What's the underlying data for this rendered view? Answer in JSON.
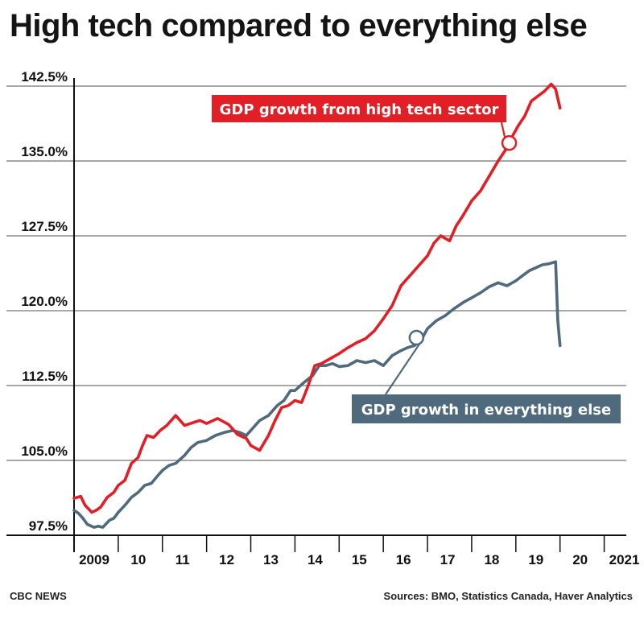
{
  "header": {
    "title": "High tech compared to everything else"
  },
  "footer": {
    "source_left": "CBC NEWS",
    "source_right": "Sources: BMO, Statistics Canada, Haver Analytics"
  },
  "chart_data": {
    "type": "line",
    "title": "High tech compared to everything else",
    "ylim": [
      97.5,
      142.5
    ],
    "xlim": [
      2009,
      2021.5
    ],
    "y_ticks": [
      97.5,
      105.0,
      112.5,
      120.0,
      127.5,
      135.0,
      142.5
    ],
    "y_tick_labels": [
      "97.5%",
      "105.0%",
      "112.5%",
      "120.0%",
      "127.5%",
      "135.0%",
      "142.5%"
    ],
    "x_ticks": [
      2009,
      2010,
      2011,
      2012,
      2013,
      2014,
      2015,
      2016,
      2017,
      2018,
      2019,
      2020,
      2021
    ],
    "x_tick_labels": [
      "2009",
      "10",
      "11",
      "12",
      "13",
      "14",
      "15",
      "16",
      "17",
      "18",
      "19",
      "20",
      "2021"
    ],
    "grid": "horizontal",
    "colors": {
      "high_tech": "#e01f26",
      "everything_else": "#4e6a7c",
      "grid": "#8a8a8a"
    },
    "series": [
      {
        "name": "GDP growth from high tech sector",
        "x": [
          2009.0,
          2009.15,
          2009.25,
          2009.4,
          2009.5,
          2009.6,
          2009.75,
          2009.9,
          2010.0,
          2010.15,
          2010.3,
          2010.45,
          2010.55,
          2010.65,
          2010.8,
          2010.95,
          2011.1,
          2011.3,
          2011.5,
          2011.7,
          2011.85,
          2012.0,
          2012.25,
          2012.5,
          2012.7,
          2012.9,
          2013.0,
          2013.2,
          2013.4,
          2013.55,
          2013.7,
          2013.85,
          2014.0,
          2014.15,
          2014.3,
          2014.45,
          2014.6,
          2014.8,
          2015.0,
          2015.2,
          2015.4,
          2015.6,
          2015.8,
          2016.0,
          2016.2,
          2016.4,
          2016.6,
          2016.8,
          2017.0,
          2017.15,
          2017.3,
          2017.5,
          2017.65,
          2017.8,
          2018.0,
          2018.2,
          2018.4,
          2018.6,
          2018.75,
          2018.9,
          2019.05,
          2019.2,
          2019.35,
          2019.5,
          2019.65,
          2019.8,
          2019.9,
          2020.0
        ],
        "values": [
          101.2,
          101.4,
          100.5,
          99.8,
          100.0,
          100.3,
          101.3,
          101.8,
          102.5,
          103.0,
          104.7,
          105.3,
          106.5,
          107.5,
          107.3,
          108.0,
          108.5,
          109.5,
          108.5,
          108.8,
          109.0,
          108.7,
          109.2,
          108.6,
          107.6,
          107.2,
          106.5,
          106.0,
          107.5,
          109.0,
          110.3,
          110.5,
          111.0,
          110.8,
          112.5,
          114.5,
          114.7,
          115.2,
          115.7,
          116.3,
          116.8,
          117.2,
          118.0,
          119.2,
          120.5,
          122.5,
          123.5,
          124.5,
          125.5,
          126.8,
          127.5,
          127.0,
          128.5,
          129.5,
          131.0,
          132.0,
          133.5,
          135.0,
          136.0,
          137.3,
          138.5,
          139.5,
          141.0,
          141.5,
          142.0,
          142.7,
          142.2,
          140.3
        ]
      },
      {
        "name": "GDP growth in everything else",
        "x": [
          2009.0,
          2009.1,
          2009.2,
          2009.3,
          2009.45,
          2009.55,
          2009.65,
          2009.8,
          2009.9,
          2010.0,
          2010.15,
          2010.3,
          2010.45,
          2010.6,
          2010.75,
          2010.9,
          2011.0,
          2011.15,
          2011.3,
          2011.5,
          2011.65,
          2011.8,
          2012.0,
          2012.2,
          2012.4,
          2012.6,
          2012.75,
          2012.9,
          2013.0,
          2013.2,
          2013.4,
          2013.6,
          2013.75,
          2013.9,
          2014.0,
          2014.2,
          2014.4,
          2014.55,
          2014.7,
          2014.85,
          2015.0,
          2015.2,
          2015.4,
          2015.6,
          2015.8,
          2016.0,
          2016.2,
          2016.4,
          2016.55,
          2016.7,
          2016.85,
          2017.0,
          2017.2,
          2017.4,
          2017.6,
          2017.8,
          2018.0,
          2018.2,
          2018.4,
          2018.6,
          2018.8,
          2019.0,
          2019.15,
          2019.3,
          2019.45,
          2019.6,
          2019.75,
          2019.9,
          2019.95,
          2020.0
        ],
        "values": [
          100.0,
          99.7,
          99.2,
          98.6,
          98.3,
          98.4,
          98.3,
          99.0,
          99.2,
          99.8,
          100.5,
          101.3,
          101.8,
          102.5,
          102.7,
          103.5,
          104.0,
          104.5,
          104.7,
          105.5,
          106.3,
          106.8,
          107.0,
          107.5,
          107.8,
          108.0,
          107.8,
          107.5,
          108.0,
          109.0,
          109.5,
          110.5,
          111.0,
          112.0,
          112.0,
          112.8,
          113.5,
          114.5,
          114.5,
          114.7,
          114.4,
          114.5,
          115.0,
          114.8,
          115.0,
          114.5,
          115.5,
          116.0,
          116.3,
          116.5,
          117.0,
          118.2,
          119.0,
          119.5,
          120.2,
          120.8,
          121.3,
          121.8,
          122.4,
          122.8,
          122.5,
          123.0,
          123.5,
          124.0,
          124.3,
          124.6,
          124.7,
          124.9,
          119.0,
          116.5
        ]
      }
    ],
    "annotations": [
      {
        "text": "GDP growth from high tech sector",
        "series": "GDP growth from high tech sector",
        "x": 2018.85,
        "y": 136.8
      },
      {
        "text": "GDP growth in everything else",
        "series": "GDP growth in everything else",
        "x": 2016.75,
        "y": 117.3
      }
    ]
  }
}
